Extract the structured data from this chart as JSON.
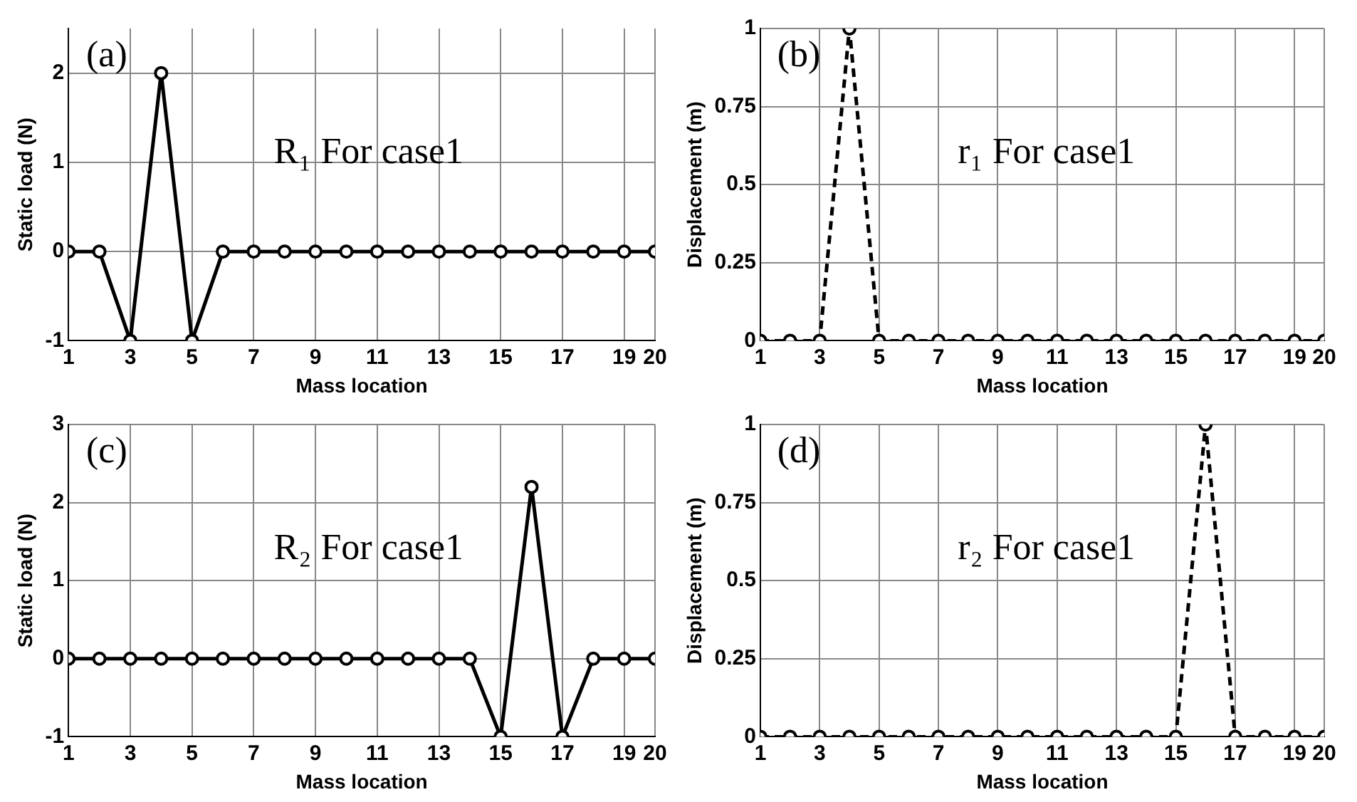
{
  "chart_data": [
    {
      "type": "line",
      "xlabel": "Mass location",
      "ylabel": "Static load (N)",
      "annotations": [
        "(a)",
        "R₁ For case1"
      ],
      "x": [
        1,
        2,
        3,
        4,
        5,
        6,
        7,
        8,
        9,
        10,
        11,
        12,
        13,
        14,
        15,
        16,
        17,
        18,
        19,
        20
      ],
      "series": [
        {
          "color": "#000000",
          "values": [
            0,
            0,
            -1,
            2,
            -1,
            0,
            0,
            0,
            0,
            0,
            0,
            0,
            0,
            0,
            0,
            0,
            0,
            0,
            0,
            0
          ]
        }
      ],
      "xlim": [
        1,
        20
      ],
      "xticks": [
        1,
        3,
        5,
        7,
        9,
        11,
        13,
        15,
        17,
        19,
        20
      ],
      "ylim": [
        -1,
        2.5
      ],
      "yticks": [
        -1,
        0,
        1,
        2
      ],
      "grid": true,
      "marker": "circle",
      "line_style": "solid"
    },
    {
      "type": "line",
      "xlabel": "Mass location",
      "ylabel": "Displacement (m)",
      "annotations": [
        "(b)",
        "r₁ For case1"
      ],
      "x": [
        1,
        2,
        3,
        4,
        5,
        6,
        7,
        8,
        9,
        10,
        11,
        12,
        13,
        14,
        15,
        16,
        17,
        18,
        19,
        20
      ],
      "series": [
        {
          "color": "#000000",
          "values": [
            0,
            0,
            0,
            1,
            0,
            0,
            0,
            0,
            0,
            0,
            0,
            0,
            0,
            0,
            0,
            0,
            0,
            0,
            0,
            0
          ]
        }
      ],
      "xlim": [
        1,
        20
      ],
      "xticks": [
        1,
        3,
        5,
        7,
        9,
        11,
        13,
        15,
        17,
        19,
        20
      ],
      "ylim": [
        0,
        1
      ],
      "yticks": [
        0,
        0.25,
        0.5,
        0.75,
        1
      ],
      "grid": true,
      "marker": "circle",
      "line_style": "dashed"
    },
    {
      "type": "line",
      "xlabel": "Mass location",
      "ylabel": "Static load (N)",
      "annotations": [
        "(c)",
        "R₂ For case1"
      ],
      "x": [
        1,
        2,
        3,
        4,
        5,
        6,
        7,
        8,
        9,
        10,
        11,
        12,
        13,
        14,
        15,
        16,
        17,
        18,
        19,
        20
      ],
      "series": [
        {
          "color": "#000000",
          "values": [
            0,
            0,
            0,
            0,
            0,
            0,
            0,
            0,
            0,
            0,
            0,
            0,
            0,
            0,
            -1,
            2.2,
            -1,
            0,
            0,
            0
          ]
        }
      ],
      "xlim": [
        1,
        20
      ],
      "xticks": [
        1,
        3,
        5,
        7,
        9,
        11,
        13,
        15,
        17,
        19,
        20
      ],
      "ylim": [
        -1,
        3
      ],
      "yticks": [
        -1,
        0,
        1,
        2,
        3
      ],
      "grid": true,
      "marker": "circle",
      "line_style": "solid"
    },
    {
      "type": "line",
      "xlabel": "Mass location",
      "ylabel": "Displacement (m)",
      "annotations": [
        "(d)",
        "r₂ For case1"
      ],
      "x": [
        1,
        2,
        3,
        4,
        5,
        6,
        7,
        8,
        9,
        10,
        11,
        12,
        13,
        14,
        15,
        16,
        17,
        18,
        19,
        20
      ],
      "series": [
        {
          "color": "#000000",
          "values": [
            0,
            0,
            0,
            0,
            0,
            0,
            0,
            0,
            0,
            0,
            0,
            0,
            0,
            0,
            0,
            1,
            0,
            0,
            0,
            0
          ]
        }
      ],
      "xlim": [
        1,
        20
      ],
      "xticks": [
        1,
        3,
        5,
        7,
        9,
        11,
        13,
        15,
        17,
        19,
        20
      ],
      "ylim": [
        0,
        1
      ],
      "yticks": [
        0,
        0.25,
        0.5,
        0.75,
        1
      ],
      "grid": true,
      "marker": "circle",
      "line_style": "dashed"
    }
  ]
}
